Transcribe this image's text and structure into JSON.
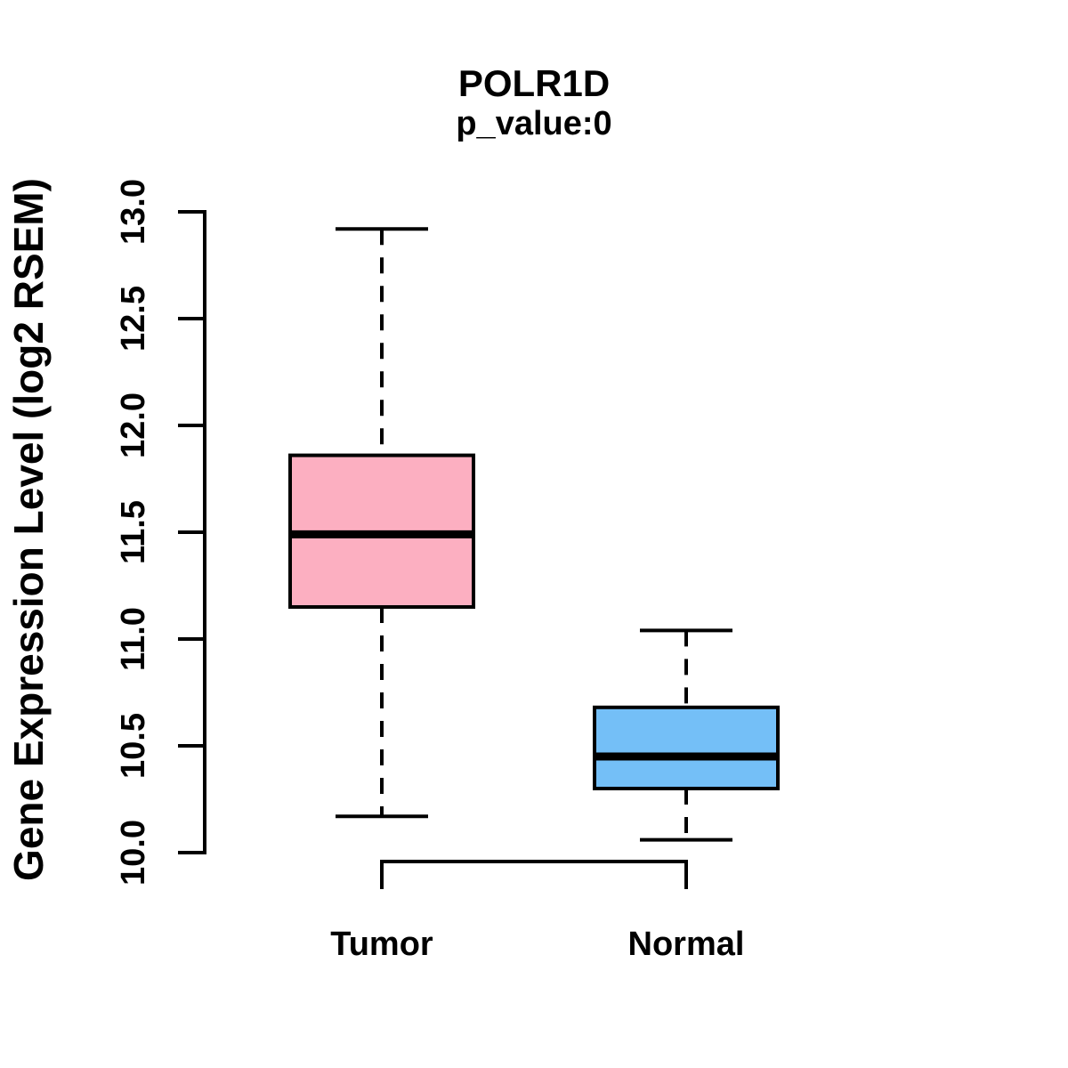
{
  "title": "POLR1D",
  "subtitle": "p_value:0",
  "colors": {
    "tumor_fill": "#FCAFC1",
    "normal_fill": "#74BFF7",
    "stroke": "#000000",
    "background": "#FFFFFF"
  },
  "chart_data": {
    "type": "boxplot",
    "title": "POLR1D",
    "subtitle": "p_value:0",
    "xlabel": "",
    "ylabel": "Gene Expression Level (log2 RSEM)",
    "ylim": [
      10.0,
      13.0
    ],
    "yticks": [
      10.0,
      10.5,
      11.0,
      11.5,
      12.0,
      12.5,
      13.0
    ],
    "grid": false,
    "legend": "none",
    "categories": [
      "Tumor",
      "Normal"
    ],
    "series": [
      {
        "name": "Tumor",
        "fill": "#FCAFC1",
        "whisker_low": 10.17,
        "q1": 11.15,
        "median": 11.49,
        "q3": 11.86,
        "whisker_high": 12.92
      },
      {
        "name": "Normal",
        "fill": "#74BFF7",
        "whisker_low": 10.06,
        "q1": 10.3,
        "median": 10.45,
        "q3": 10.68,
        "whisker_high": 11.04
      }
    ],
    "comparison_bracket": {
      "from": "Tumor",
      "to": "Normal",
      "side": "bottom"
    }
  }
}
